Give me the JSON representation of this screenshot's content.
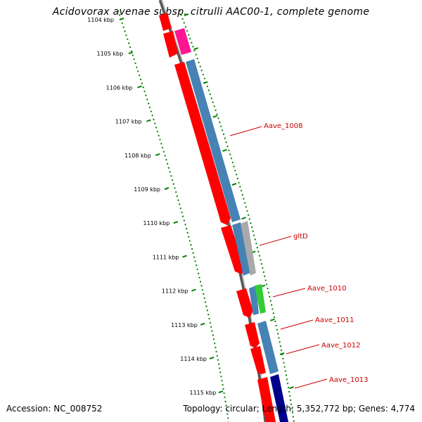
{
  "title": "Acidovorax avenae subsp. citrulli AAC00-1, complete genome",
  "footer": {
    "accession": "Accession: NC_008752",
    "summary": "Topology: circular; Length: 5,352,772 bp; Genes: 4,774"
  },
  "kbp_ticks": [
    "1104 kbp",
    "1105 kbp",
    "1106 kbp",
    "1107 kbp",
    "1108 kbp",
    "1109 kbp",
    "1110 kbp",
    "1111 kbp",
    "1112 kbp",
    "1113 kbp",
    "1114 kbp",
    "1115 kbp"
  ],
  "gene_labels": [
    "Aave_1008",
    "gltD",
    "Aave_1010",
    "Aave_1011",
    "Aave_1012",
    "Aave_1013"
  ],
  "colors": {
    "backbone": "#808080",
    "forward_cds": "#ff0000",
    "reverse_cds": "#4682b4",
    "pink_feature": "#ff1493",
    "green_feature": "#33cc33",
    "navy_feature": "#00008b",
    "grey_feature": "#a9a9a9",
    "tick": "#008000",
    "label": "#cc0000"
  }
}
